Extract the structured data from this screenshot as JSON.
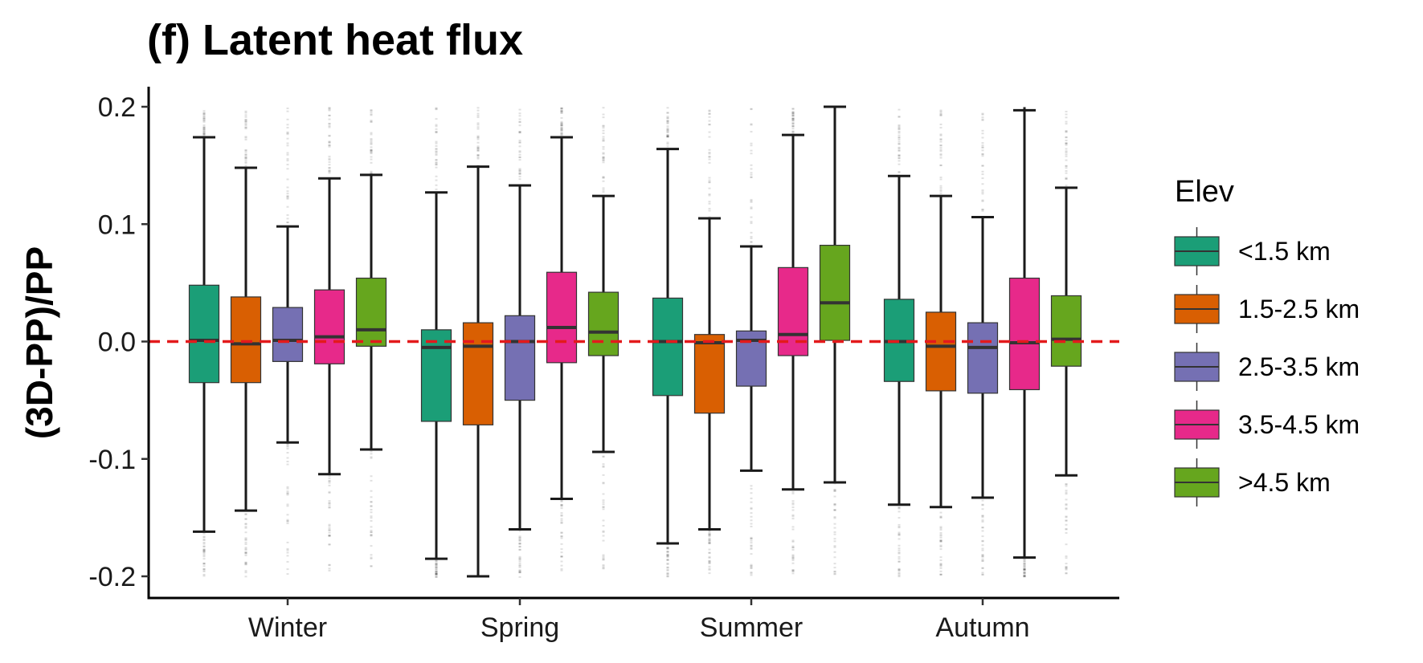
{
  "chart_data": {
    "type": "boxplot",
    "title": "(f) Latent heat flux",
    "ylabel": "(3D-PP)/PP",
    "xlabel": "",
    "ylim": [
      -0.2,
      0.2
    ],
    "yticks": [
      -0.2,
      -0.1,
      0.0,
      0.1,
      0.2
    ],
    "ytick_labels": [
      "-0.2",
      "-0.1",
      "0.0",
      "0.1",
      "0.2"
    ],
    "categories": [
      "Winter",
      "Spring",
      "Summer",
      "Autumn"
    ],
    "reference_line": {
      "y": 0.0,
      "color": "#e31a1c",
      "style": "dashed"
    },
    "grid": false,
    "legend": {
      "title": "Elev",
      "position": "right"
    },
    "series": [
      {
        "name": "<1.5 km",
        "color": "#1b9e77",
        "boxes": [
          {
            "whisker_low": -0.162,
            "q1": -0.035,
            "median": 0.001,
            "q3": 0.048,
            "whisker_high": 0.174
          },
          {
            "whisker_low": -0.185,
            "q1": -0.068,
            "median": -0.005,
            "q3": 0.01,
            "whisker_high": 0.127
          },
          {
            "whisker_low": -0.172,
            "q1": -0.046,
            "median": 0.0,
            "q3": 0.037,
            "whisker_high": 0.164
          },
          {
            "whisker_low": -0.139,
            "q1": -0.034,
            "median": 0.0,
            "q3": 0.036,
            "whisker_high": 0.141
          }
        ]
      },
      {
        "name": "1.5-2.5 km",
        "color": "#d95f02",
        "boxes": [
          {
            "whisker_low": -0.144,
            "q1": -0.035,
            "median": -0.002,
            "q3": 0.038,
            "whisker_high": 0.148
          },
          {
            "whisker_low": -0.2,
            "q1": -0.071,
            "median": -0.004,
            "q3": 0.016,
            "whisker_high": 0.149
          },
          {
            "whisker_low": -0.16,
            "q1": -0.061,
            "median": -0.001,
            "q3": 0.006,
            "whisker_high": 0.105
          },
          {
            "whisker_low": -0.141,
            "q1": -0.042,
            "median": -0.004,
            "q3": 0.025,
            "whisker_high": 0.124
          }
        ]
      },
      {
        "name": "2.5-3.5 km",
        "color": "#7570b3",
        "boxes": [
          {
            "whisker_low": -0.086,
            "q1": -0.017,
            "median": 0.001,
            "q3": 0.029,
            "whisker_high": 0.098
          },
          {
            "whisker_low": -0.16,
            "q1": -0.05,
            "median": 0.0,
            "q3": 0.022,
            "whisker_high": 0.133
          },
          {
            "whisker_low": -0.11,
            "q1": -0.038,
            "median": 0.001,
            "q3": 0.009,
            "whisker_high": 0.081
          },
          {
            "whisker_low": -0.133,
            "q1": -0.044,
            "median": -0.005,
            "q3": 0.016,
            "whisker_high": 0.106
          }
        ]
      },
      {
        "name": "3.5-4.5 km",
        "color": "#e7298a",
        "boxes": [
          {
            "whisker_low": -0.113,
            "q1": -0.019,
            "median": 0.004,
            "q3": 0.044,
            "whisker_high": 0.139
          },
          {
            "whisker_low": -0.134,
            "q1": -0.018,
            "median": 0.012,
            "q3": 0.059,
            "whisker_high": 0.174
          },
          {
            "whisker_low": -0.126,
            "q1": -0.012,
            "median": 0.006,
            "q3": 0.063,
            "whisker_high": 0.176
          },
          {
            "whisker_low": -0.184,
            "q1": -0.041,
            "median": -0.001,
            "q3": 0.054,
            "whisker_high": 0.197
          }
        ]
      },
      {
        "name": ">4.5 km",
        "color": "#66a61e",
        "boxes": [
          {
            "whisker_low": -0.092,
            "q1": -0.004,
            "median": 0.01,
            "q3": 0.054,
            "whisker_high": 0.142
          },
          {
            "whisker_low": -0.094,
            "q1": -0.012,
            "median": 0.008,
            "q3": 0.042,
            "whisker_high": 0.124
          },
          {
            "whisker_low": -0.12,
            "q1": 0.001,
            "median": 0.033,
            "q3": 0.082,
            "whisker_high": 0.2
          },
          {
            "whisker_low": -0.114,
            "q1": -0.021,
            "median": 0.002,
            "q3": 0.039,
            "whisker_high": 0.131
          }
        ]
      }
    ]
  }
}
